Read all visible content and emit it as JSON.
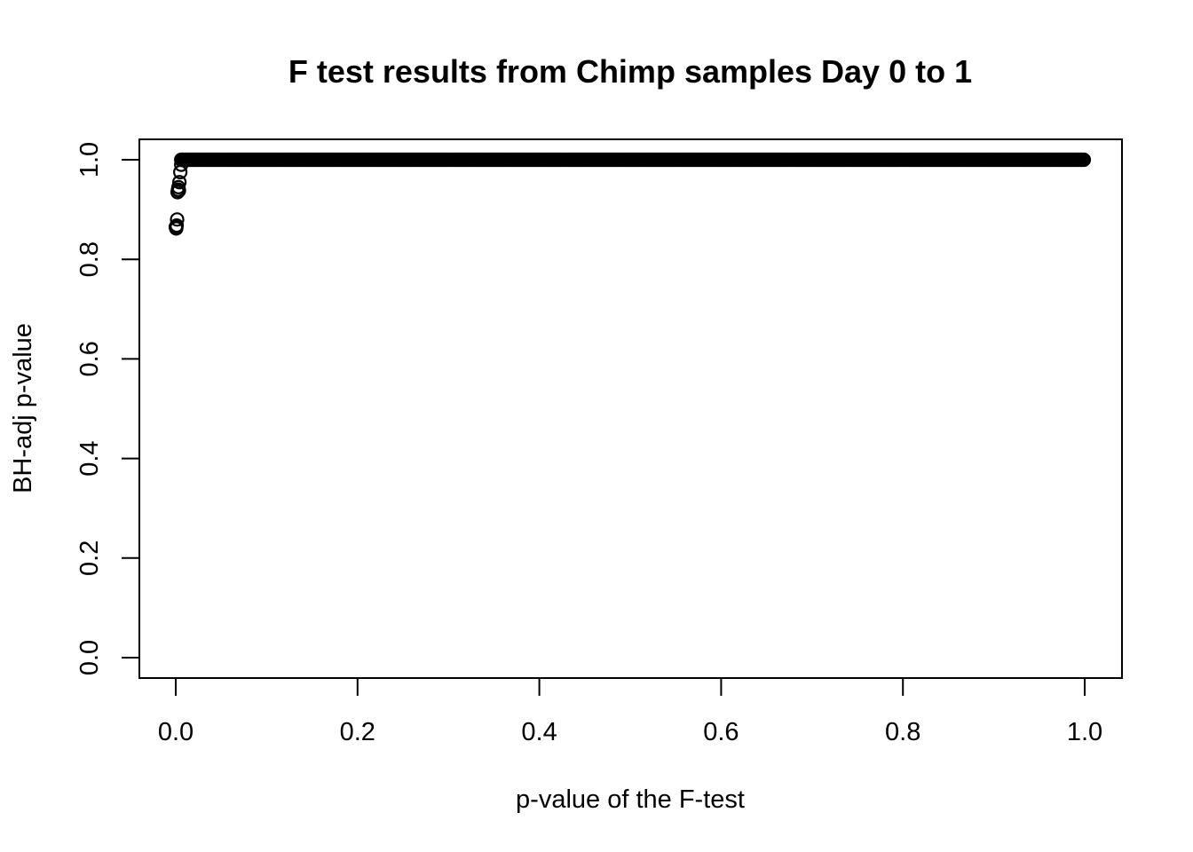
{
  "chart_data": {
    "type": "scatter",
    "title": "F test results from Chimp samples Day 0 to 1",
    "xlabel": "p-value of the F-test",
    "ylabel": "BH-adj p-value",
    "xlim": [
      0,
      1
    ],
    "ylim": [
      0,
      1
    ],
    "x_ticks": [
      "0.0",
      "0.2",
      "0.4",
      "0.6",
      "0.8",
      "1.0"
    ],
    "y_ticks": [
      "0.0",
      "0.2",
      "0.4",
      "0.6",
      "0.8",
      "1.0"
    ],
    "grid": false,
    "legend": "none",
    "marker": "open-circle",
    "series": [
      {
        "points": [
          {
            "x": 0.0,
            "y": 0.865
          },
          {
            "x": 0.0005,
            "y": 0.862
          },
          {
            "x": 0.001,
            "y": 0.868
          },
          {
            "x": 0.0015,
            "y": 0.88
          },
          {
            "x": 0.002,
            "y": 0.935
          },
          {
            "x": 0.0025,
            "y": 0.94
          },
          {
            "x": 0.003,
            "y": 0.945
          },
          {
            "x": 0.0035,
            "y": 0.938
          },
          {
            "x": 0.004,
            "y": 0.955
          },
          {
            "x": 0.005,
            "y": 0.975
          },
          {
            "x": 0.006,
            "y": 0.99
          }
        ]
      },
      {
        "dense_segment": {
          "x_from": 0.006,
          "x_to": 1.0,
          "y": 1.0,
          "spacing": 0.0015
        }
      }
    ]
  }
}
